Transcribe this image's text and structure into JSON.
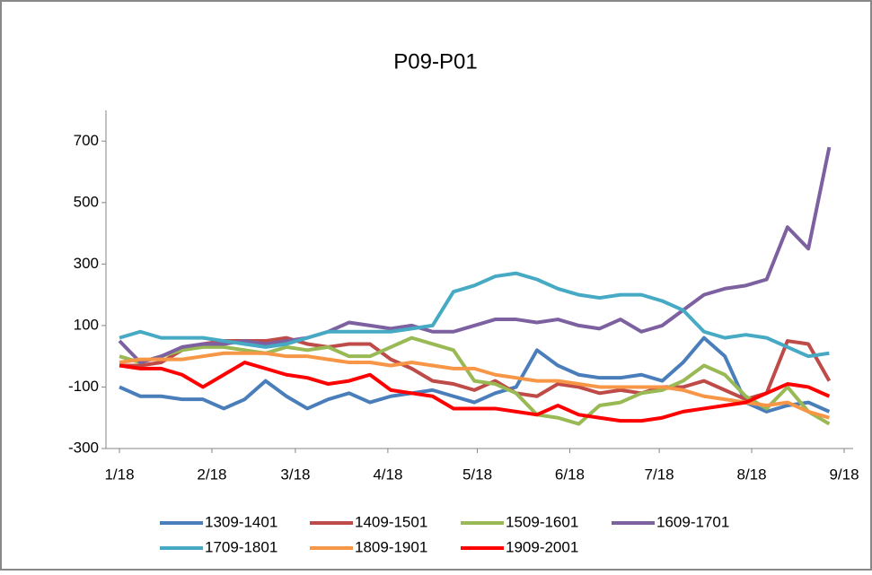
{
  "chart_data": {
    "type": "line",
    "title": "P09-P01",
    "x": [
      0,
      7,
      14,
      21,
      28,
      35,
      42,
      49,
      56,
      63,
      70,
      77,
      84,
      91,
      98,
      105,
      112,
      119,
      126,
      133,
      140,
      147,
      154,
      161,
      168,
      175,
      182,
      189,
      196,
      203,
      210,
      217,
      224,
      231,
      238
    ],
    "xlim": [
      0,
      243
    ],
    "xticks": [
      {
        "value": 0,
        "label": "1/18"
      },
      {
        "value": 31,
        "label": "2/18"
      },
      {
        "value": 59,
        "label": "3/18"
      },
      {
        "value": 90,
        "label": "4/18"
      },
      {
        "value": 120,
        "label": "5/18"
      },
      {
        "value": 151,
        "label": "6/18"
      },
      {
        "value": 181,
        "label": "7/18"
      },
      {
        "value": 212,
        "label": "8/18"
      },
      {
        "value": 243,
        "label": "9/18"
      }
    ],
    "ylim": [
      -300,
      800
    ],
    "yticks": [
      -300,
      -100,
      100,
      300,
      500,
      700
    ],
    "series": [
      {
        "name": "1309-1401",
        "color": "#4a7ebb",
        "values": [
          -100,
          -130,
          -130,
          -140,
          -140,
          -170,
          -140,
          -80,
          -130,
          -170,
          -140,
          -120,
          -150,
          -130,
          -120,
          -110,
          -130,
          -150,
          -120,
          -100,
          20,
          -30,
          -60,
          -70,
          -70,
          -60,
          -80,
          -20,
          60,
          0,
          -150,
          -180,
          -160,
          -150,
          -180
        ]
      },
      {
        "name": "1409-1501",
        "color": "#be4b48",
        "values": [
          -30,
          -30,
          -20,
          20,
          40,
          50,
          50,
          50,
          60,
          40,
          30,
          40,
          40,
          -10,
          -40,
          -80,
          -90,
          -110,
          -80,
          -120,
          -130,
          -90,
          -100,
          -120,
          -110,
          -120,
          -100,
          -100,
          -80,
          -110,
          -140,
          -120,
          50,
          40,
          -80
        ]
      },
      {
        "name": "1509-1601",
        "color": "#98b954",
        "values": [
          0,
          -20,
          0,
          20,
          30,
          30,
          20,
          10,
          30,
          20,
          30,
          0,
          0,
          30,
          60,
          40,
          20,
          -80,
          -90,
          -120,
          -190,
          -200,
          -220,
          -160,
          -150,
          -120,
          -110,
          -80,
          -30,
          -60,
          -130,
          -170,
          -100,
          -180,
          -220
        ]
      },
      {
        "name": "1609-1701",
        "color": "#7d60a0",
        "values": [
          50,
          -20,
          0,
          30,
          40,
          40,
          50,
          40,
          50,
          60,
          80,
          110,
          100,
          90,
          100,
          80,
          80,
          100,
          120,
          120,
          110,
          120,
          100,
          90,
          120,
          80,
          100,
          150,
          200,
          220,
          230,
          250,
          420,
          350,
          680
        ]
      },
      {
        "name": "1709-1801",
        "color": "#46aac5",
        "values": [
          60,
          80,
          60,
          60,
          60,
          50,
          40,
          30,
          40,
          60,
          80,
          80,
          80,
          80,
          90,
          100,
          210,
          230,
          260,
          270,
          250,
          220,
          200,
          190,
          200,
          200,
          180,
          150,
          80,
          60,
          70,
          60,
          30,
          0,
          10
        ]
      },
      {
        "name": "1809-1901",
        "color": "#f79646",
        "values": [
          -20,
          -10,
          -10,
          -10,
          0,
          10,
          10,
          10,
          0,
          0,
          -10,
          -20,
          -20,
          -30,
          -20,
          -30,
          -40,
          -40,
          -60,
          -70,
          -80,
          -80,
          -90,
          -100,
          -100,
          -100,
          -100,
          -110,
          -130,
          -140,
          -150,
          -160,
          -150,
          -180,
          -200
        ]
      },
      {
        "name": "1909-2001",
        "color": "#ff0000",
        "values": [
          -30,
          -40,
          -40,
          -60,
          -100,
          -60,
          -20,
          -40,
          -60,
          -70,
          -90,
          -80,
          -60,
          -110,
          -120,
          -130,
          -170,
          -170,
          -170,
          -180,
          -190,
          -160,
          -190,
          -200,
          -210,
          -210,
          -200,
          -180,
          -170,
          -160,
          -150,
          -120,
          -90,
          -100,
          -130
        ]
      }
    ]
  }
}
